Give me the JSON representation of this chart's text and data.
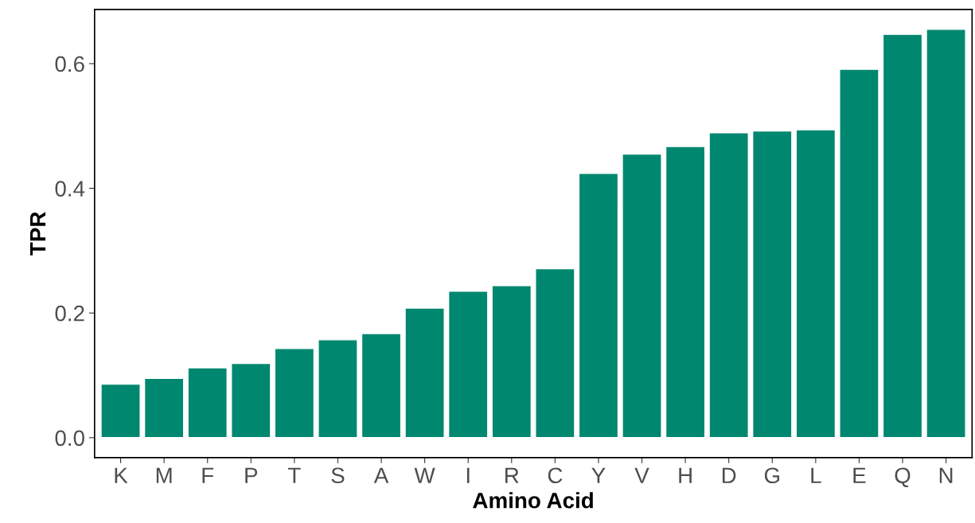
{
  "chart_data": {
    "type": "bar",
    "xlabel": "Amino Acid",
    "ylabel": "TPR",
    "categories": [
      "K",
      "M",
      "F",
      "P",
      "T",
      "S",
      "A",
      "W",
      "I",
      "R",
      "C",
      "Y",
      "V",
      "H",
      "D",
      "G",
      "L",
      "E",
      "Q",
      "N"
    ],
    "values": [
      0.086,
      0.095,
      0.112,
      0.119,
      0.143,
      0.157,
      0.167,
      0.208,
      0.235,
      0.244,
      0.271,
      0.424,
      0.455,
      0.467,
      0.489,
      0.492,
      0.494,
      0.591,
      0.647,
      0.655
    ],
    "color": "#00876f",
    "ylim": [
      -0.032,
      0.687
    ],
    "yticks": [
      {
        "value": 0,
        "label": "0.0"
      },
      0.2,
      0.4,
      0.6
    ],
    "grid": false,
    "legend": false
  }
}
